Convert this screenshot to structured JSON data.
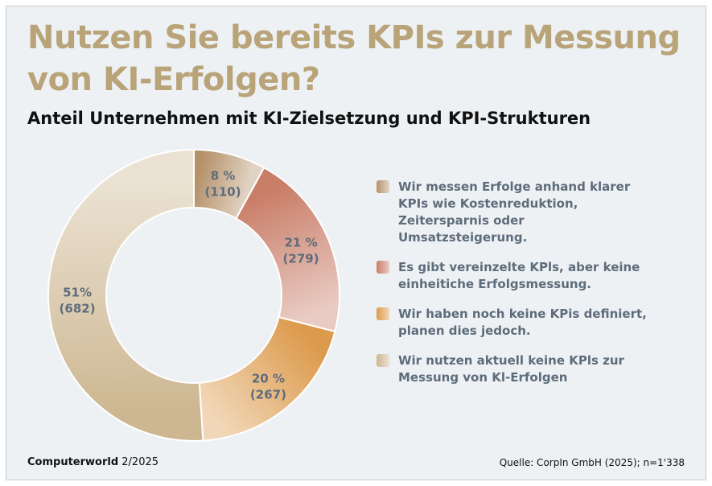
{
  "header": {
    "title": "Nutzen Sie bereits KPIs zur Messung von KI-Erfolgen?",
    "subtitle": "Anteil Unternehmen mit KI-Zielsetzung und KPI-Strukturen"
  },
  "chart_data": {
    "type": "pie",
    "variant": "donut",
    "title": "Nutzen Sie bereits KPIs zur Messung von KI-Erfolgen?",
    "subtitle": "Anteil Unternehmen mit KI-Zielsetzung und KPI-Strukturen",
    "legend_position": "right",
    "series": [
      {
        "name": "Wir messen Erfolge anhand klarer KPIs wie Kostenreduktion, Zeitersparnis oder Umsatzsteigerung.",
        "value": 8,
        "count": 110,
        "label": "8 %",
        "count_label": "(110)",
        "color": "#b5916a"
      },
      {
        "name": "Es gibt vereinzelte KPls, aber keine einheitiche Erfolgsmessung.",
        "value": 21,
        "count": 279,
        "label": "21 %",
        "count_label": "(279)",
        "color": "#c97e68"
      },
      {
        "name": "Wir haben noch keine KPis definiert, planen dies jedoch.",
        "value": 20,
        "count": 267,
        "label": "20 %",
        "count_label": "(267)",
        "color": "#dc9a4c"
      },
      {
        "name": "Wir nutzen aktuell keine KPls zur Messung von Kl-Erfolgen",
        "value": 51,
        "count": 682,
        "label": "51%",
        "count_label": "(682)",
        "color": "#cdb791"
      }
    ]
  },
  "footer": {
    "publication": "Computerworld",
    "issue": "2/2025",
    "source": "Quelle: CorpIn GmbH (2025); n=1'338"
  }
}
